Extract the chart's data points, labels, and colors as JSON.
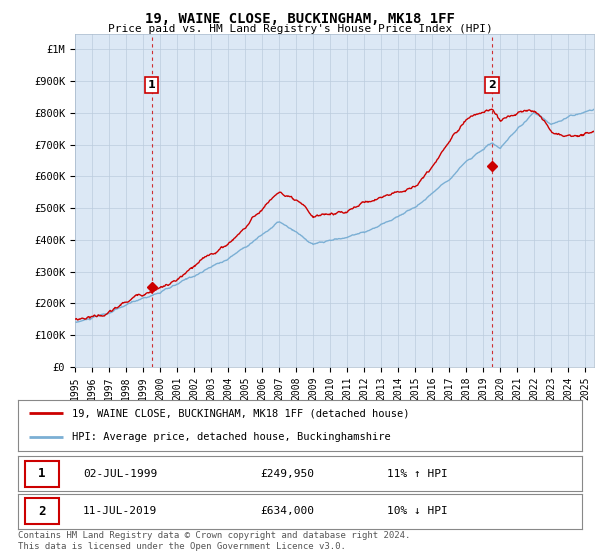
{
  "title": "19, WAINE CLOSE, BUCKINGHAM, MK18 1FF",
  "subtitle": "Price paid vs. HM Land Registry's House Price Index (HPI)",
  "x_start": 1995.0,
  "x_end": 2025.5,
  "y_min": 0,
  "y_max": 1050000,
  "y_ticks": [
    0,
    100000,
    200000,
    300000,
    400000,
    500000,
    600000,
    700000,
    800000,
    900000,
    1000000
  ],
  "y_tick_labels": [
    "£0",
    "£100K",
    "£200K",
    "£300K",
    "£400K",
    "£500K",
    "£600K",
    "£700K",
    "£800K",
    "£900K",
    "£1M"
  ],
  "x_ticks": [
    1995,
    1996,
    1997,
    1998,
    1999,
    2000,
    2001,
    2002,
    2003,
    2004,
    2005,
    2006,
    2007,
    2008,
    2009,
    2010,
    2011,
    2012,
    2013,
    2014,
    2015,
    2016,
    2017,
    2018,
    2019,
    2020,
    2021,
    2022,
    2023,
    2024,
    2025
  ],
  "hpi_color": "#7bafd4",
  "price_color": "#cc0000",
  "chart_bg": "#dce8f5",
  "marker1_x": 1999.5,
  "marker1_y": 249950,
  "marker1_label": "1",
  "marker2_x": 2019.5,
  "marker2_y": 634000,
  "marker2_label": "2",
  "legend_line1": "19, WAINE CLOSE, BUCKINGHAM, MK18 1FF (detached house)",
  "legend_line2": "HPI: Average price, detached house, Buckinghamshire",
  "table_row1_num": "1",
  "table_row1_date": "02-JUL-1999",
  "table_row1_price": "£249,950",
  "table_row1_hpi": "11% ↑ HPI",
  "table_row2_num": "2",
  "table_row2_date": "11-JUL-2019",
  "table_row2_price": "£634,000",
  "table_row2_hpi": "10% ↓ HPI",
  "footer": "Contains HM Land Registry data © Crown copyright and database right 2024.\nThis data is licensed under the Open Government Licence v3.0.",
  "bg_color": "#ffffff",
  "grid_color": "#bbccdd"
}
